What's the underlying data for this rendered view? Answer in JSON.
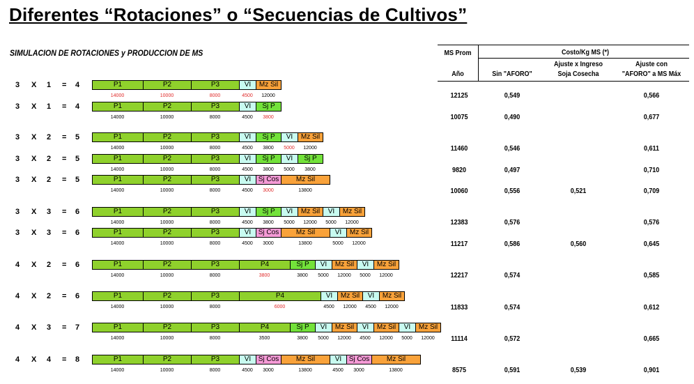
{
  "title": "Diferentes “Rotaciones” o “Secuencias de Cultivos”",
  "subtitle": "SIMULACION DE ROTACIONES  y PRODUCCION DE MS",
  "headers": {
    "ms_prom": "MS Prom",
    "anio": "Año",
    "costo": "Costo/Kg MS (*)",
    "sin_aforo": "Sin \"AFORO\"",
    "ajuste_ingreso_1": "Ajuste x Ingreso",
    "ajuste_ingreso_2": "Soja Cosecha",
    "ajuste_aforo_1": "Ajuste con",
    "ajuste_aforo_2": "\"AFORO\" a MS Máx"
  },
  "colors": {
    "green": "#8fd12c",
    "cyan": "#c8fbf0",
    "orange": "#f9a23a",
    "pink": "#f59ad6",
    "lime": "#73e23a",
    "red_text": "#e02a2a"
  },
  "rows": [
    {
      "formula": [
        "3",
        "X",
        "1",
        "=",
        "4"
      ],
      "segments": [
        [
          "P1",
          "green"
        ],
        [
          "P2",
          "green"
        ],
        [
          "P3",
          "green"
        ],
        [
          "VI",
          "cyan"
        ],
        [
          "Mz Sil",
          "orange"
        ]
      ],
      "numbers": [
        [
          "14000",
          1
        ],
        [
          "10000",
          1
        ],
        [
          "8000",
          1
        ],
        [
          "4500",
          1
        ],
        [
          "12000",
          0
        ]
      ],
      "ms": "12125",
      "sin": "0,549",
      "ing": "",
      "afo": "0,566"
    },
    {
      "formula": [
        "3",
        "X",
        "1",
        "=",
        "4"
      ],
      "segments": [
        [
          "P1",
          "green"
        ],
        [
          "P2",
          "green"
        ],
        [
          "P3",
          "green"
        ],
        [
          "VI",
          "cyan"
        ],
        [
          "Sj P",
          "lime"
        ]
      ],
      "numbers": [
        [
          "14000",
          0
        ],
        [
          "10000",
          0
        ],
        [
          "8000",
          0
        ],
        [
          "4500",
          0
        ],
        [
          "3800",
          1
        ]
      ],
      "ms": "10075",
      "sin": "0,490",
      "ing": "",
      "afo": "0,677"
    },
    {
      "formula": [
        "3",
        "X",
        "2",
        "=",
        "5"
      ],
      "segments": [
        [
          "P1",
          "green"
        ],
        [
          "P2",
          "green"
        ],
        [
          "P3",
          "green"
        ],
        [
          "VI",
          "cyan"
        ],
        [
          "Sj P",
          "lime"
        ],
        [
          "VI",
          "cyan"
        ],
        [
          "Mz Sil",
          "orange"
        ]
      ],
      "numbers": [
        [
          "14000",
          0
        ],
        [
          "10000",
          0
        ],
        [
          "8000",
          0
        ],
        [
          "4500",
          0
        ],
        [
          "3800",
          0
        ],
        [
          "5000",
          1
        ],
        [
          "12000",
          0
        ]
      ],
      "ms": "11460",
      "sin": "0,546",
      "ing": "",
      "afo": "0,611"
    },
    {
      "formula": [
        "3",
        "X",
        "2",
        "=",
        "5"
      ],
      "segments": [
        [
          "P1",
          "green"
        ],
        [
          "P2",
          "green"
        ],
        [
          "P3",
          "green"
        ],
        [
          "VI",
          "cyan"
        ],
        [
          "Sj P",
          "lime"
        ],
        [
          "VI",
          "cyan"
        ],
        [
          "Sj P",
          "lime"
        ]
      ],
      "numbers": [
        [
          "14000",
          0
        ],
        [
          "10000",
          0
        ],
        [
          "8000",
          0
        ],
        [
          "4500",
          0
        ],
        [
          "3800",
          0
        ],
        [
          "5000",
          0
        ],
        [
          "3800",
          0
        ]
      ],
      "ms": "9820",
      "sin": "0,497",
      "ing": "",
      "afo": "0,710"
    },
    {
      "formula": [
        "3",
        "X",
        "2",
        "=",
        "5"
      ],
      "segments": [
        [
          "P1",
          "green"
        ],
        [
          "P2",
          "green"
        ],
        [
          "P3",
          "green"
        ],
        [
          "VI",
          "cyan"
        ],
        [
          "Sj Cos",
          "pink"
        ],
        [
          "Mz Sil",
          "orange"
        ]
      ],
      "numbers": [
        [
          "14000",
          0
        ],
        [
          "10000",
          0
        ],
        [
          "8000",
          0
        ],
        [
          "4500",
          0
        ],
        [
          "3000",
          1
        ],
        [
          "13800",
          0
        ]
      ],
      "ms": "10060",
      "sin": "0,556",
      "ing": "0,521",
      "afo": "0,709"
    },
    {
      "formula": [
        "3",
        "X",
        "3",
        "=",
        "6"
      ],
      "segments": [
        [
          "P1",
          "green"
        ],
        [
          "P2",
          "green"
        ],
        [
          "P3",
          "green"
        ],
        [
          "VI",
          "cyan"
        ],
        [
          "Sj P",
          "lime"
        ],
        [
          "VI",
          "cyan"
        ],
        [
          "Mz Sil",
          "orange"
        ],
        [
          "VI",
          "cyan"
        ],
        [
          "Mz Sil",
          "orange"
        ]
      ],
      "numbers": [
        [
          "14000",
          0
        ],
        [
          "10000",
          0
        ],
        [
          "8000",
          0
        ],
        [
          "4500",
          0
        ],
        [
          "3800",
          0
        ],
        [
          "5000",
          0
        ],
        [
          "12000",
          0
        ],
        [
          "5000",
          0
        ],
        [
          "12000",
          0
        ]
      ],
      "ms": "12383",
      "sin": "0,576",
      "ing": "",
      "afo": "0,576"
    },
    {
      "formula": [
        "3",
        "X",
        "3",
        "=",
        "6"
      ],
      "segments": [
        [
          "P1",
          "green"
        ],
        [
          "P2",
          "green"
        ],
        [
          "P3",
          "green"
        ],
        [
          "VI",
          "cyan"
        ],
        [
          "Sj Cos",
          "pink"
        ],
        [
          "Mz Sil",
          "orange"
        ],
        [
          "VI",
          "cyan"
        ],
        [
          "Mz Sil",
          "orange"
        ]
      ],
      "numbers": [
        [
          "14000",
          0
        ],
        [
          "10000",
          0
        ],
        [
          "8000",
          0
        ],
        [
          "4500",
          0
        ],
        [
          "3000",
          0
        ],
        [
          "13800",
          0
        ],
        [
          "5000",
          0
        ],
        [
          "12000",
          0
        ]
      ],
      "ms": "11217",
      "sin": "0,586",
      "ing": "0,560",
      "afo": "0,645"
    },
    {
      "formula": [
        "4",
        "X",
        "2",
        "=",
        "6"
      ],
      "segments": [
        [
          "P1",
          "green"
        ],
        [
          "P2",
          "green"
        ],
        [
          "P3",
          "green"
        ],
        [
          "P4",
          "green"
        ],
        [
          "Sj P",
          "lime"
        ],
        [
          "VI",
          "cyan"
        ],
        [
          "Mz Sil",
          "orange"
        ],
        [
          "VI",
          "cyan"
        ],
        [
          "Mz Sil",
          "orange"
        ]
      ],
      "numbers": [
        [
          "14000",
          0
        ],
        [
          "10000",
          0
        ],
        [
          "8000",
          0
        ],
        [
          "3800",
          1
        ],
        [
          "3800",
          0
        ],
        [
          "5000",
          0
        ],
        [
          "12000",
          0
        ],
        [
          "5000",
          0
        ],
        [
          "12000",
          0
        ]
      ],
      "ms": "12217",
      "sin": "0,574",
      "ing": "",
      "afo": "0,585"
    },
    {
      "formula": [
        "4",
        "X",
        "2",
        "=",
        "6"
      ],
      "segments": [
        [
          "P1",
          "green"
        ],
        [
          "P2",
          "green"
        ],
        [
          "P3",
          "green"
        ],
        [
          "P4",
          "green"
        ],
        [
          "VI",
          "cyan"
        ],
        [
          "Mz Sil",
          "orange"
        ],
        [
          "VI",
          "cyan"
        ],
        [
          "Mz Sil",
          "orange"
        ]
      ],
      "numbers": [
        [
          "14000",
          0
        ],
        [
          "10000",
          0
        ],
        [
          "8000",
          0
        ],
        [
          "6000",
          1
        ],
        [
          "4500",
          0
        ],
        [
          "12000",
          0
        ],
        [
          "4500",
          0
        ],
        [
          "12000",
          0
        ]
      ],
      "ms": "11833",
      "sin": "0,574",
      "ing": "",
      "afo": "0,612"
    },
    {
      "formula": [
        "4",
        "X",
        "3",
        "=",
        "7"
      ],
      "segments": [
        [
          "P1",
          "green"
        ],
        [
          "P2",
          "green"
        ],
        [
          "P3",
          "green"
        ],
        [
          "P4",
          "green"
        ],
        [
          "Sj P",
          "lime"
        ],
        [
          "VI",
          "cyan"
        ],
        [
          "Mz Sil",
          "orange"
        ],
        [
          "VI",
          "cyan"
        ],
        [
          "Mz Sil",
          "orange"
        ],
        [
          "VI",
          "cyan"
        ],
        [
          "Mz Sil",
          "orange"
        ]
      ],
      "numbers": [
        [
          "14000",
          0
        ],
        [
          "10000",
          0
        ],
        [
          "8000",
          0
        ],
        [
          "3500",
          0
        ],
        [
          "3800",
          0
        ],
        [
          "5000",
          0
        ],
        [
          "12000",
          0
        ],
        [
          "4500",
          0
        ],
        [
          "12000",
          0
        ],
        [
          "5000",
          0
        ],
        [
          "12000",
          0
        ]
      ],
      "ms": "11114",
      "sin": "0,572",
      "ing": "",
      "afo": "0,665"
    },
    {
      "formula": [
        "4",
        "X",
        "4",
        "=",
        "8"
      ],
      "segments": [
        [
          "P1",
          "green"
        ],
        [
          "P2",
          "green"
        ],
        [
          "P3",
          "green"
        ],
        [
          "VI",
          "cyan"
        ],
        [
          "Sj Cos",
          "pink"
        ],
        [
          "Mz Sil",
          "orange"
        ],
        [
          "VI",
          "cyan"
        ],
        [
          "Sj Cos",
          "pink"
        ],
        [
          "Mz Sil",
          "orange"
        ]
      ],
      "numbers": [
        [
          "14000",
          0
        ],
        [
          "10000",
          0
        ],
        [
          "8000",
          0
        ],
        [
          "4500",
          0
        ],
        [
          "3000",
          0
        ],
        [
          "13800",
          0
        ],
        [
          "4500",
          0
        ],
        [
          "3000",
          0
        ],
        [
          "13800",
          0
        ]
      ],
      "ms": "8575",
      "sin": "0,591",
      "ing": "0,539",
      "afo": "0,901"
    }
  ]
}
